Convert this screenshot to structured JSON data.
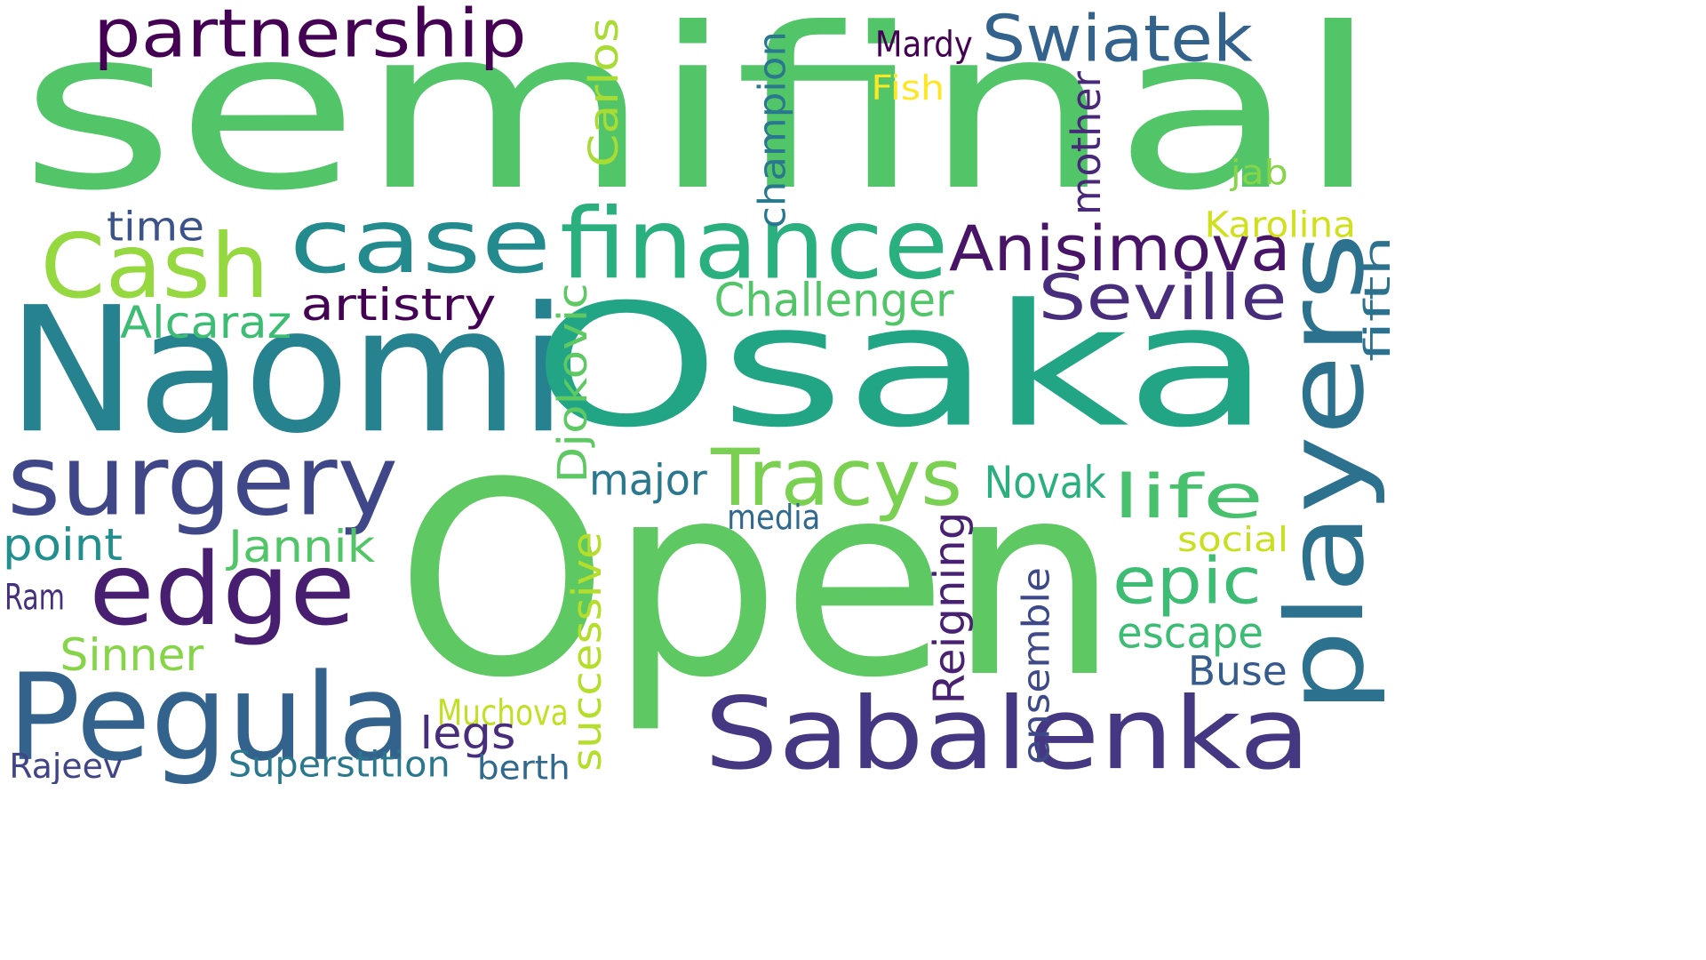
{
  "words": [
    {
      "text": "semifinal",
      "color": "#52c569"
    },
    {
      "text": "Open",
      "color": "#5ec962"
    },
    {
      "text": "Naomi",
      "color": "#26828e"
    },
    {
      "text": "Osaka",
      "color": "#21a585"
    },
    {
      "text": "case",
      "color": "#238a8d"
    },
    {
      "text": "finance",
      "color": "#2ab07f"
    },
    {
      "text": "Cash",
      "color": "#95d840"
    },
    {
      "text": "surgery",
      "color": "#3f4788"
    },
    {
      "text": "players",
      "color": "#2c718e"
    },
    {
      "text": "Pegula",
      "color": "#33638d"
    },
    {
      "text": "Sabalenka",
      "color": "#453781"
    },
    {
      "text": "edge",
      "color": "#481f70"
    },
    {
      "text": "partnership",
      "color": "#440154"
    },
    {
      "text": "Swiatek",
      "color": "#33638d"
    },
    {
      "text": "Anisimova",
      "color": "#481467"
    },
    {
      "text": "Seville",
      "color": "#472d7b"
    },
    {
      "text": "Tracys",
      "color": "#7ad151"
    },
    {
      "text": "life",
      "color": "#48c16e"
    },
    {
      "text": "epic",
      "color": "#3dbc74"
    },
    {
      "text": "time",
      "color": "#3b528b"
    },
    {
      "text": "artistry",
      "color": "#440154"
    },
    {
      "text": "Alcaraz",
      "color": "#3dbc74"
    },
    {
      "text": "Challenger",
      "color": "#52c569"
    },
    {
      "text": "Carlos",
      "color": "#a8db34"
    },
    {
      "text": "champion",
      "color": "#2a788e"
    },
    {
      "text": "mother",
      "color": "#482878"
    },
    {
      "text": "Mardy",
      "color": "#440154"
    },
    {
      "text": "Fish",
      "color": "#fde725"
    },
    {
      "text": "jab",
      "color": "#86d549"
    },
    {
      "text": "Karolina",
      "color": "#d0e11c"
    },
    {
      "text": "fifth",
      "color": "#2c718e"
    },
    {
      "text": "Djokovic",
      "color": "#5ec962"
    },
    {
      "text": "major",
      "color": "#2a788e"
    },
    {
      "text": "Novak",
      "color": "#2ab07f"
    },
    {
      "text": "media",
      "color": "#31688e"
    },
    {
      "text": "social",
      "color": "#c8e020"
    },
    {
      "text": "point",
      "color": "#218f8d"
    },
    {
      "text": "Jannik",
      "color": "#52c569"
    },
    {
      "text": "Reigning",
      "color": "#482173"
    },
    {
      "text": "successive",
      "color": "#b5de2b"
    },
    {
      "text": "ensemble",
      "color": "#3e4989"
    },
    {
      "text": "escape",
      "color": "#3dbc74"
    },
    {
      "text": "Buse",
      "color": "#365c8d"
    },
    {
      "text": "Ram",
      "color": "#46307e"
    },
    {
      "text": "Sinner",
      "color": "#86d549"
    },
    {
      "text": "Muchova",
      "color": "#c2df23"
    },
    {
      "text": "legs",
      "color": "#472d7b"
    },
    {
      "text": "Rajeev",
      "color": "#414487"
    },
    {
      "text": "Superstition",
      "color": "#2a788e"
    },
    {
      "text": "berth",
      "color": "#31688e"
    }
  ]
}
